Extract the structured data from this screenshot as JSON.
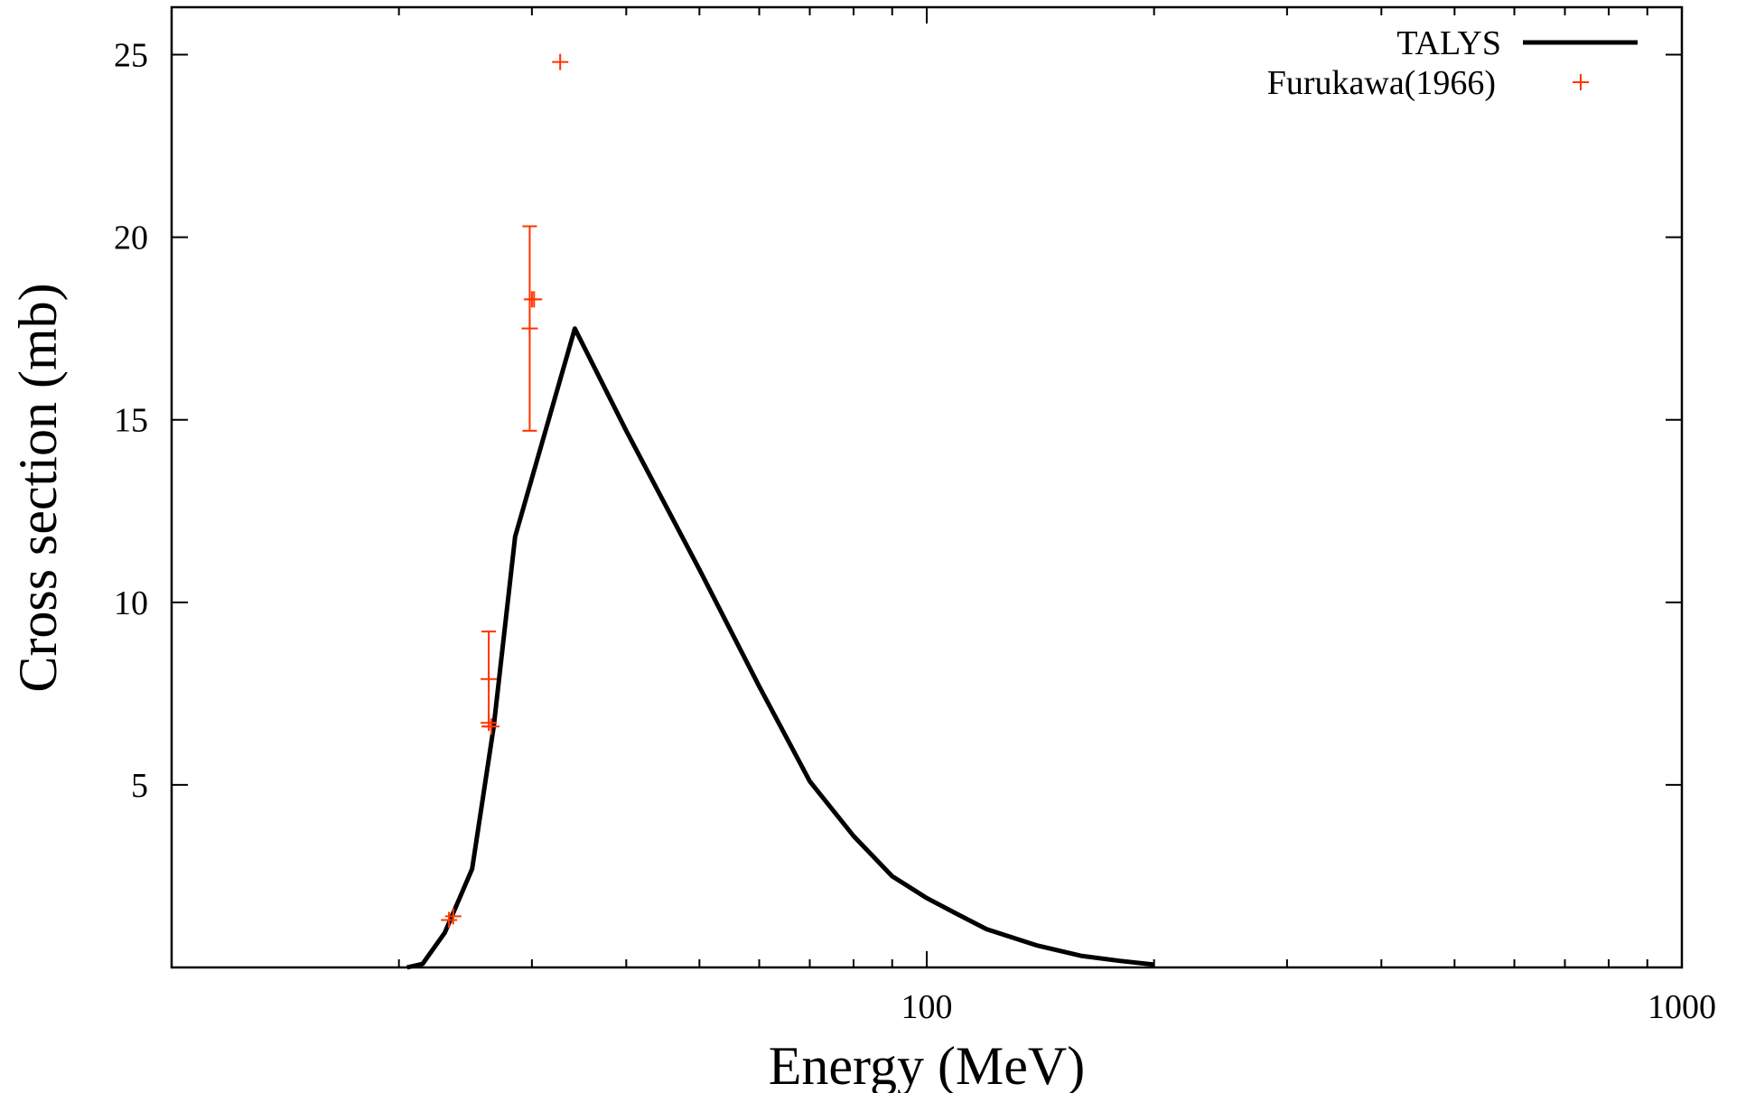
{
  "chart_data": {
    "type": "line",
    "xlabel": "Energy (MeV)",
    "ylabel": "Cross section (mb)",
    "xscale": "log",
    "xlim": [
      10,
      1000
    ],
    "ylim": [
      0,
      26.3
    ],
    "xticks": [
      {
        "value": 100,
        "label": "100"
      },
      {
        "value": 1000,
        "label": "1000"
      }
    ],
    "yticks": [
      {
        "value": 5,
        "label": "5"
      },
      {
        "value": 10,
        "label": "10"
      },
      {
        "value": 15,
        "label": "15"
      },
      {
        "value": 20,
        "label": "20"
      },
      {
        "value": 25,
        "label": "25"
      }
    ],
    "grid": false,
    "legend_position": "top-right",
    "colors": {
      "talys": "#000000",
      "furukawa": "#ff3300"
    },
    "series": [
      {
        "name": "TALYS",
        "kind": "line",
        "x": [
          20.5,
          21.5,
          23,
          25,
          26.7,
          28.5,
          34.2,
          40,
          50,
          60,
          70,
          80,
          90,
          100,
          110,
          120,
          140,
          160,
          180,
          200
        ],
        "y": [
          0.0,
          0.1,
          0.95,
          2.7,
          6.6,
          11.8,
          17.5,
          14.7,
          10.9,
          7.7,
          5.1,
          3.6,
          2.5,
          1.9,
          1.45,
          1.05,
          0.6,
          0.32,
          0.18,
          0.08
        ]
      },
      {
        "name": "Furukawa(1966)",
        "kind": "scatter",
        "points": [
          {
            "x": 23.3,
            "y": 1.3
          },
          {
            "x": 23.6,
            "y": 1.4
          },
          {
            "x": 26.3,
            "y": 7.9,
            "err": 1.3
          },
          {
            "x": 26.3,
            "y": 6.7
          },
          {
            "x": 26.5,
            "y": 6.6
          },
          {
            "x": 29.8,
            "y": 17.5,
            "err": 2.8
          },
          {
            "x": 30.0,
            "y": 18.3
          },
          {
            "x": 30.2,
            "y": 18.3
          },
          {
            "x": 32.7,
            "y": 24.8
          }
        ]
      }
    ]
  }
}
